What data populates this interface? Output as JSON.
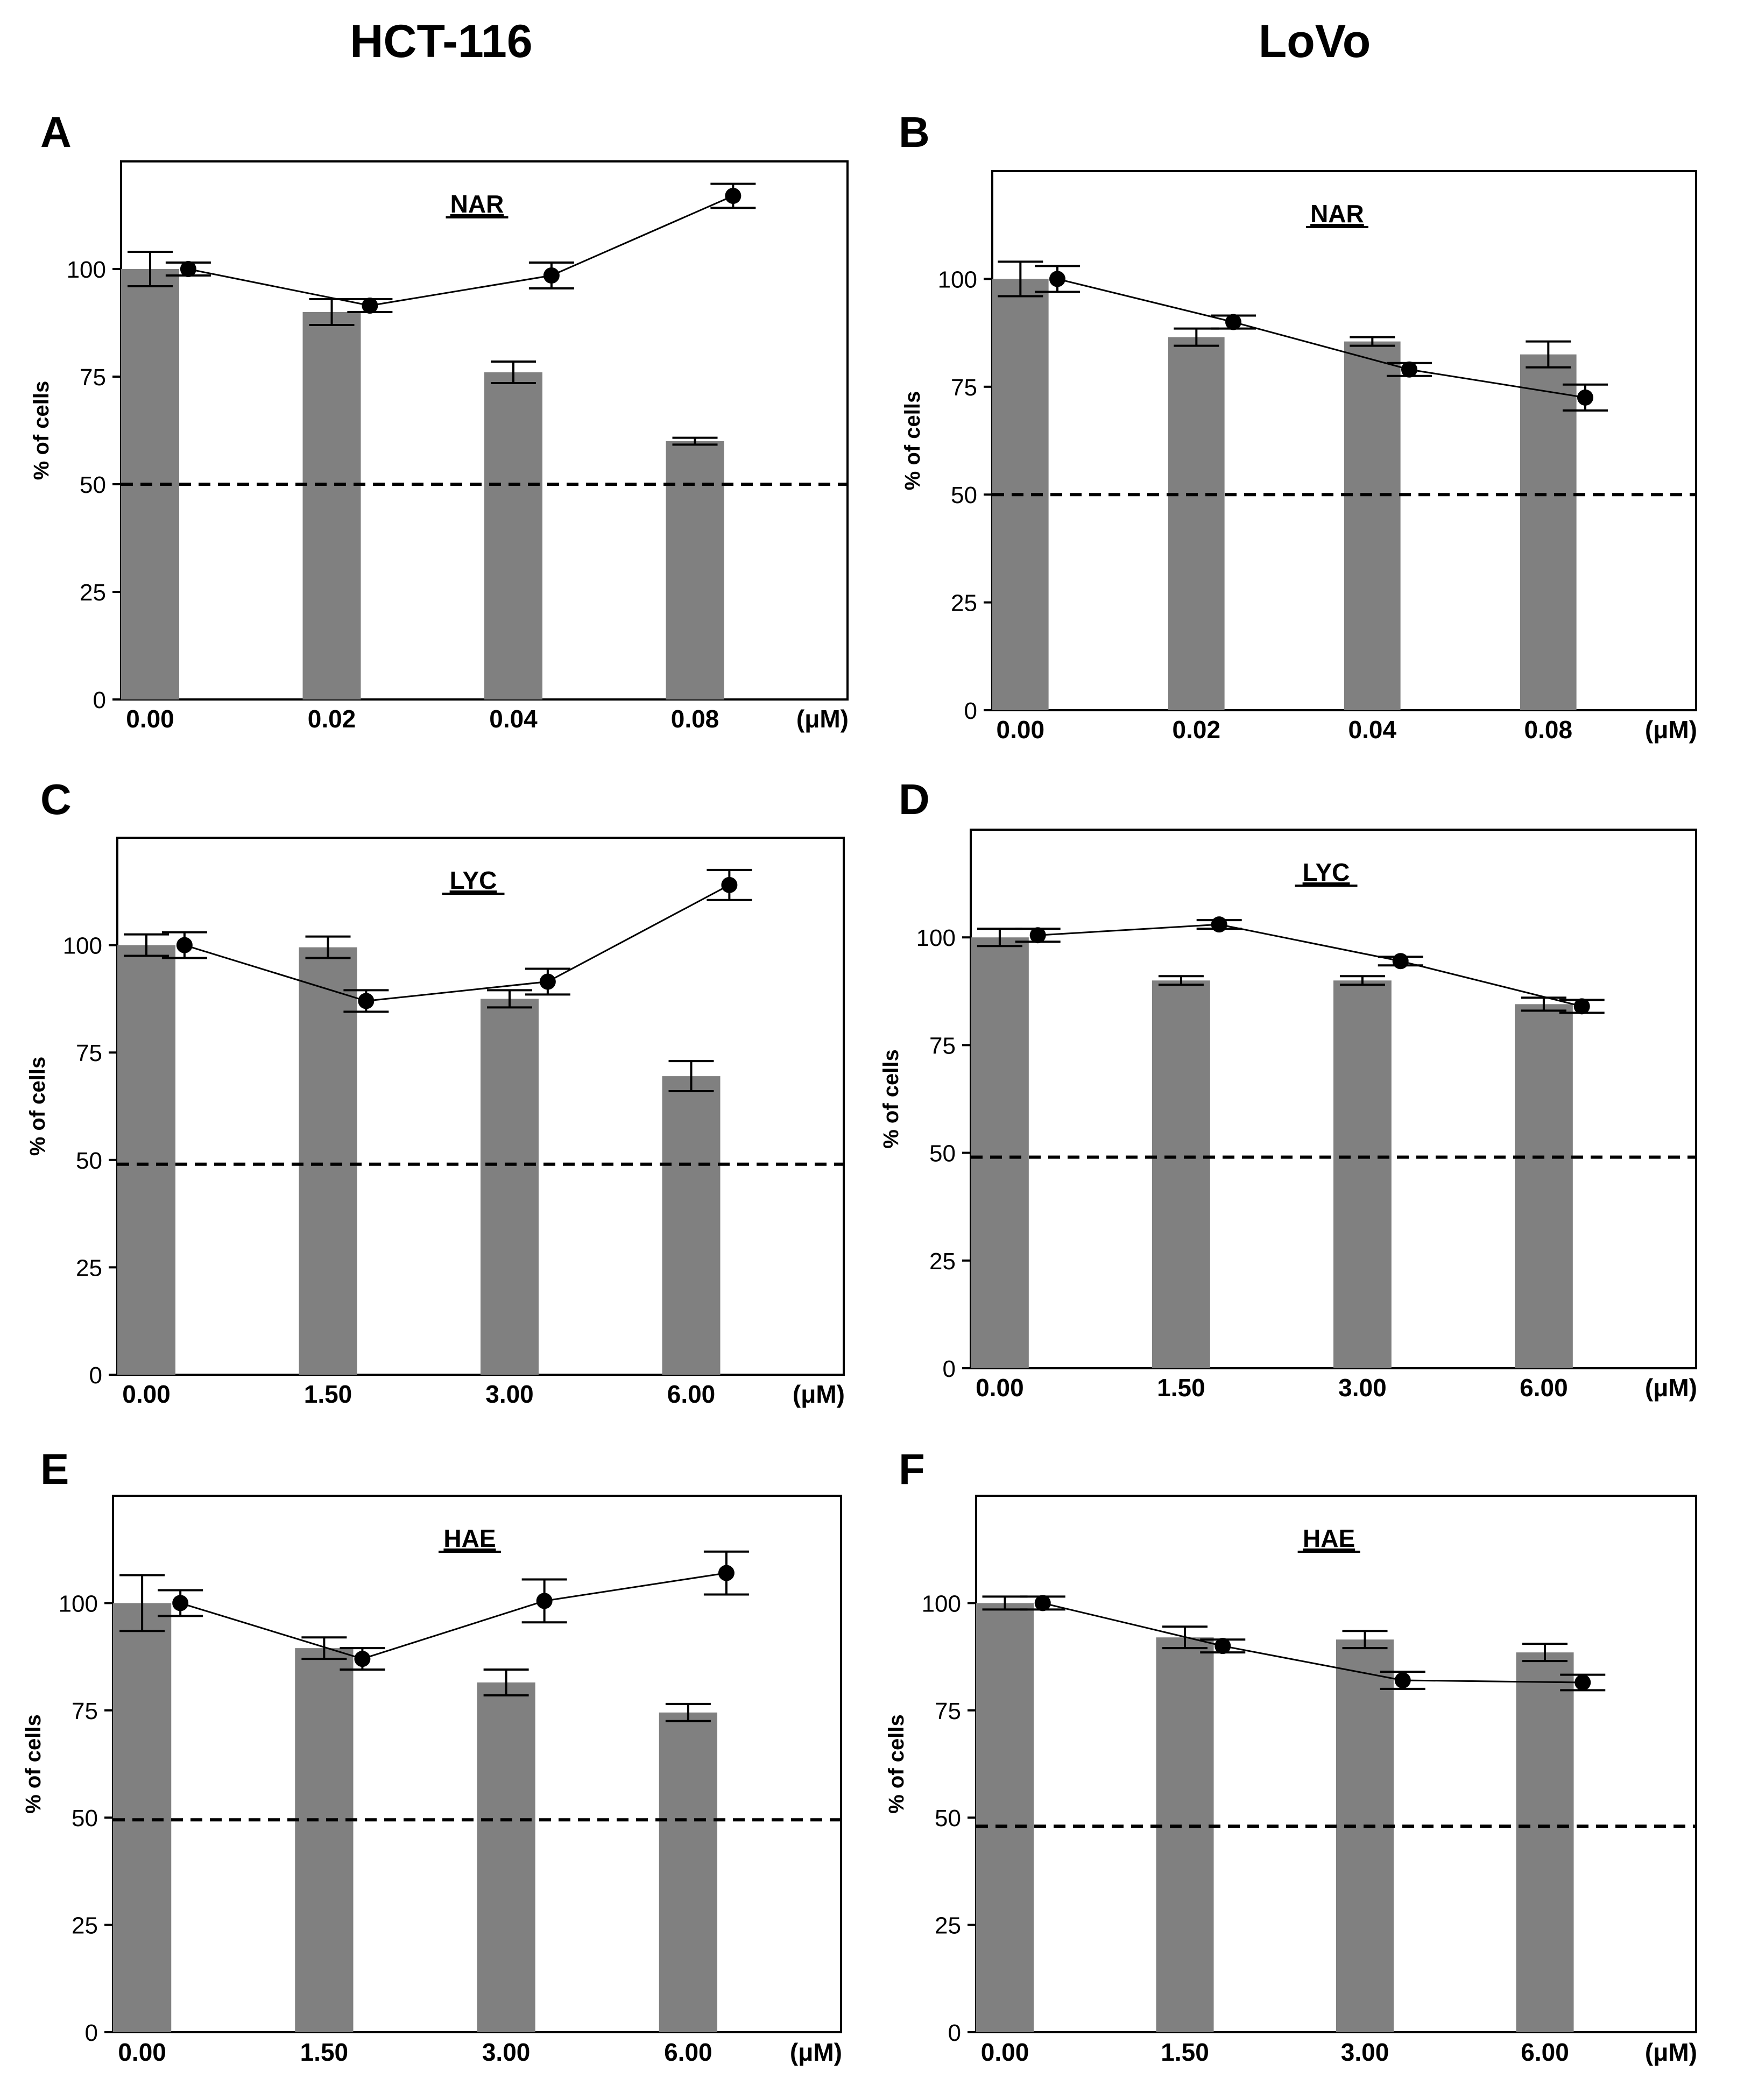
{
  "columns": [
    "HCT-116",
    "LoVo"
  ],
  "chart_data": [
    {
      "panel": "A",
      "type": "bar+line",
      "compound": "NAR",
      "cell_line": "HCT-116",
      "categories": [
        "0.00",
        "0.02",
        "0.04",
        "0.08"
      ],
      "unit": "(μM)",
      "ylabel": "% of cells",
      "ylim": [
        0,
        125
      ],
      "yticks": [
        0,
        25,
        50,
        75,
        100
      ],
      "bars": [
        100,
        90,
        76,
        60
      ],
      "bar_err": [
        4,
        3,
        2.5,
        0.8
      ],
      "line": [
        100,
        91.5,
        98.5,
        117
      ],
      "line_err": [
        1.5,
        1.5,
        3,
        2.8
      ],
      "threshold": 50
    },
    {
      "panel": "B",
      "type": "bar+line",
      "compound": "NAR",
      "cell_line": "LoVo",
      "categories": [
        "0.00",
        "0.02",
        "0.04",
        "0.08"
      ],
      "unit": "(μM)",
      "ylabel": "% of cells",
      "ylim": [
        0,
        125
      ],
      "yticks": [
        0,
        25,
        50,
        75,
        100
      ],
      "bars": [
        100,
        86.5,
        85.5,
        82.5
      ],
      "bar_err": [
        4,
        2,
        1,
        3
      ],
      "line": [
        100,
        90,
        79,
        72.5
      ],
      "line_err": [
        3,
        1.5,
        1.5,
        3
      ],
      "threshold": 50
    },
    {
      "panel": "C",
      "type": "bar+line",
      "compound": "LYC",
      "cell_line": "HCT-116",
      "categories": [
        "0.00",
        "1.50",
        "3.00",
        "6.00"
      ],
      "unit": "(μM)",
      "ylabel": "% of cells",
      "ylim": [
        0,
        125
      ],
      "yticks": [
        0,
        25,
        50,
        75,
        100
      ],
      "bars": [
        100,
        99.5,
        87.5,
        69.5
      ],
      "bar_err": [
        2.5,
        2.5,
        2,
        3.5
      ],
      "line": [
        100,
        87,
        91.5,
        114
      ],
      "line_err": [
        3,
        2.5,
        3,
        3.5
      ],
      "threshold": 49
    },
    {
      "panel": "D",
      "type": "bar+line",
      "compound": "LYC",
      "cell_line": "LoVo",
      "categories": [
        "0.00",
        "1.50",
        "3.00",
        "6.00"
      ],
      "unit": "(μM)",
      "ylabel": "% of cells",
      "ylim": [
        0,
        125
      ],
      "yticks": [
        0,
        25,
        50,
        75,
        100
      ],
      "bars": [
        100,
        90,
        90,
        84.5
      ],
      "bar_err": [
        2,
        1,
        1,
        1.5
      ],
      "line": [
        100.5,
        103,
        94.5,
        84
      ],
      "line_err": [
        1.5,
        1,
        1,
        1.5
      ],
      "threshold": 49
    },
    {
      "panel": "E",
      "type": "bar+line",
      "compound": "HAE",
      "cell_line": "HCT-116",
      "categories": [
        "0.00",
        "1.50",
        "3.00",
        "6.00"
      ],
      "unit": "(μM)",
      "ylabel": "% of cells",
      "ylim": [
        0,
        125
      ],
      "yticks": [
        0,
        25,
        50,
        75,
        100
      ],
      "bars": [
        100,
        89.5,
        81.5,
        74.5
      ],
      "bar_err": [
        6.5,
        2.5,
        3,
        2
      ],
      "line": [
        100,
        87,
        100.5,
        107
      ],
      "line_err": [
        3,
        2.5,
        5,
        5
      ],
      "threshold": 49.5
    },
    {
      "panel": "F",
      "type": "bar+line",
      "compound": "HAE",
      "cell_line": "LoVo",
      "categories": [
        "0.00",
        "1.50",
        "3.00",
        "6.00"
      ],
      "unit": "(μM)",
      "ylabel": "% of cells",
      "ylim": [
        0,
        125
      ],
      "yticks": [
        0,
        25,
        50,
        75,
        100
      ],
      "bars": [
        100,
        92,
        91.5,
        88.5
      ],
      "bar_err": [
        1.5,
        2.5,
        2,
        2
      ],
      "line": [
        100,
        90,
        82,
        81.5
      ],
      "line_err": [
        1.5,
        1.5,
        2,
        1.8
      ],
      "threshold": 48
    }
  ]
}
